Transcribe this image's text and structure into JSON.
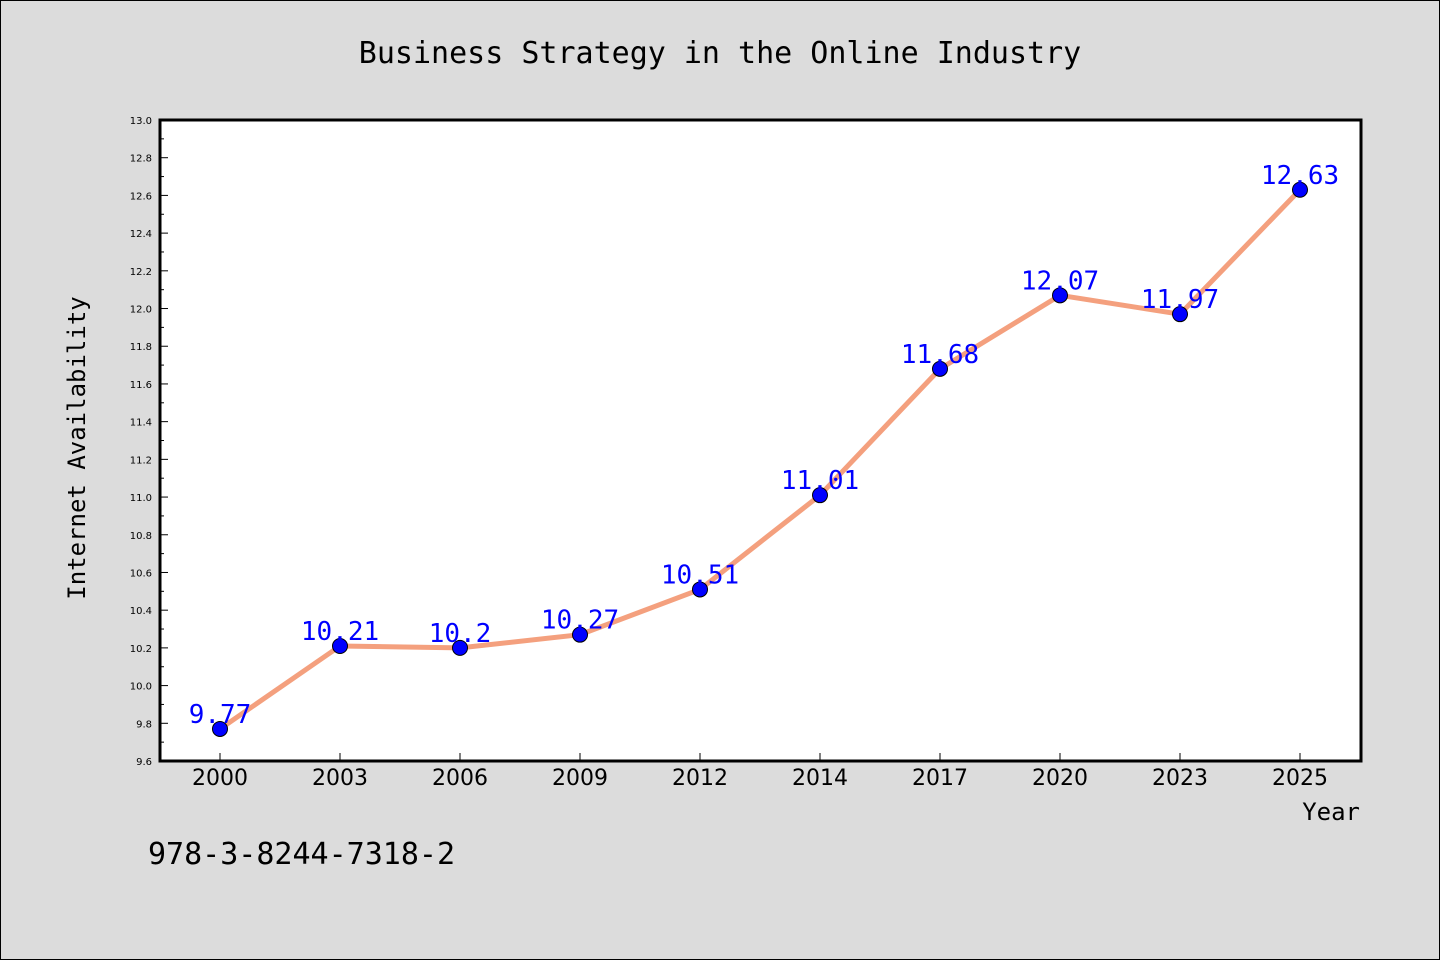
{
  "footer": {
    "isbn": "978-3-8244-7318-2"
  },
  "colors": {
    "background": "#dcdcdc",
    "plot_background": "#ffffff",
    "line": "#f4a07e",
    "marker": "#0000ff",
    "data_label": "#0000ff"
  },
  "chart_data": {
    "type": "line",
    "title": "Business Strategy in the Online Industry",
    "xlabel": "Year",
    "ylabel": "Internet Availability",
    "categories": [
      "2000",
      "2003",
      "2006",
      "2009",
      "2012",
      "2014",
      "2017",
      "2020",
      "2023",
      "2025"
    ],
    "values": [
      9.77,
      10.21,
      10.2,
      10.27,
      10.51,
      11.01,
      11.68,
      12.07,
      11.97,
      12.63
    ],
    "data_labels": [
      "9.77",
      "10.21",
      "10.2",
      "10.27",
      "10.51",
      "11.01",
      "11.68",
      "12.07",
      "11.97",
      "12.63"
    ],
    "ylim": [
      9.6,
      13.0
    ],
    "yticks": [
      "9.6",
      "9.8",
      "10.0",
      "10.2",
      "10.4",
      "10.6",
      "10.8",
      "11.0",
      "11.2",
      "11.4",
      "11.6",
      "11.8",
      "12.0",
      "12.2",
      "12.4",
      "12.6",
      "12.8",
      "13.0"
    ],
    "grid": false,
    "legend": "none"
  }
}
